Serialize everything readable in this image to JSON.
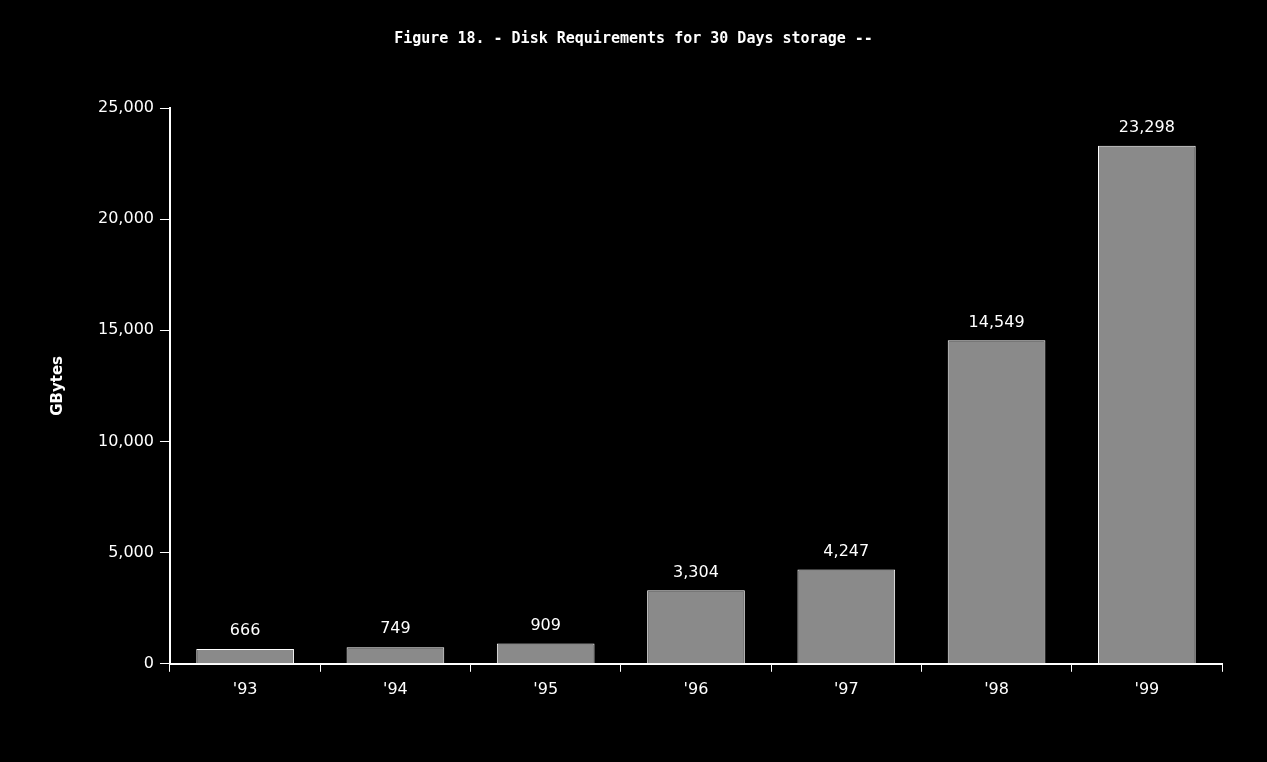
{
  "chart_data": {
    "type": "bar",
    "title": "Figure 18. - Disk Requirements for 30 Days storage --",
    "ylabel": "GBytes",
    "categories": [
      "'93",
      "'94",
      "'95",
      "'96",
      "'97",
      "'98",
      "'99"
    ],
    "values": [
      666,
      749,
      909,
      3304,
      4247,
      14549,
      23298
    ],
    "value_labels": [
      "666",
      "749",
      "909",
      "3,304",
      "4,247",
      "14,549",
      "23,298"
    ],
    "color": "#8a8a8a",
    "ylim": [
      0,
      25000
    ],
    "yticks": [
      {
        "value": 0,
        "label": "0"
      },
      {
        "value": 5000,
        "label": "5,000"
      },
      {
        "value": 10000,
        "label": "10,000"
      },
      {
        "value": 15000,
        "label": "15,000"
      },
      {
        "value": 20000,
        "label": "20,000"
      },
      {
        "value": 25000,
        "label": "25,000"
      }
    ]
  }
}
